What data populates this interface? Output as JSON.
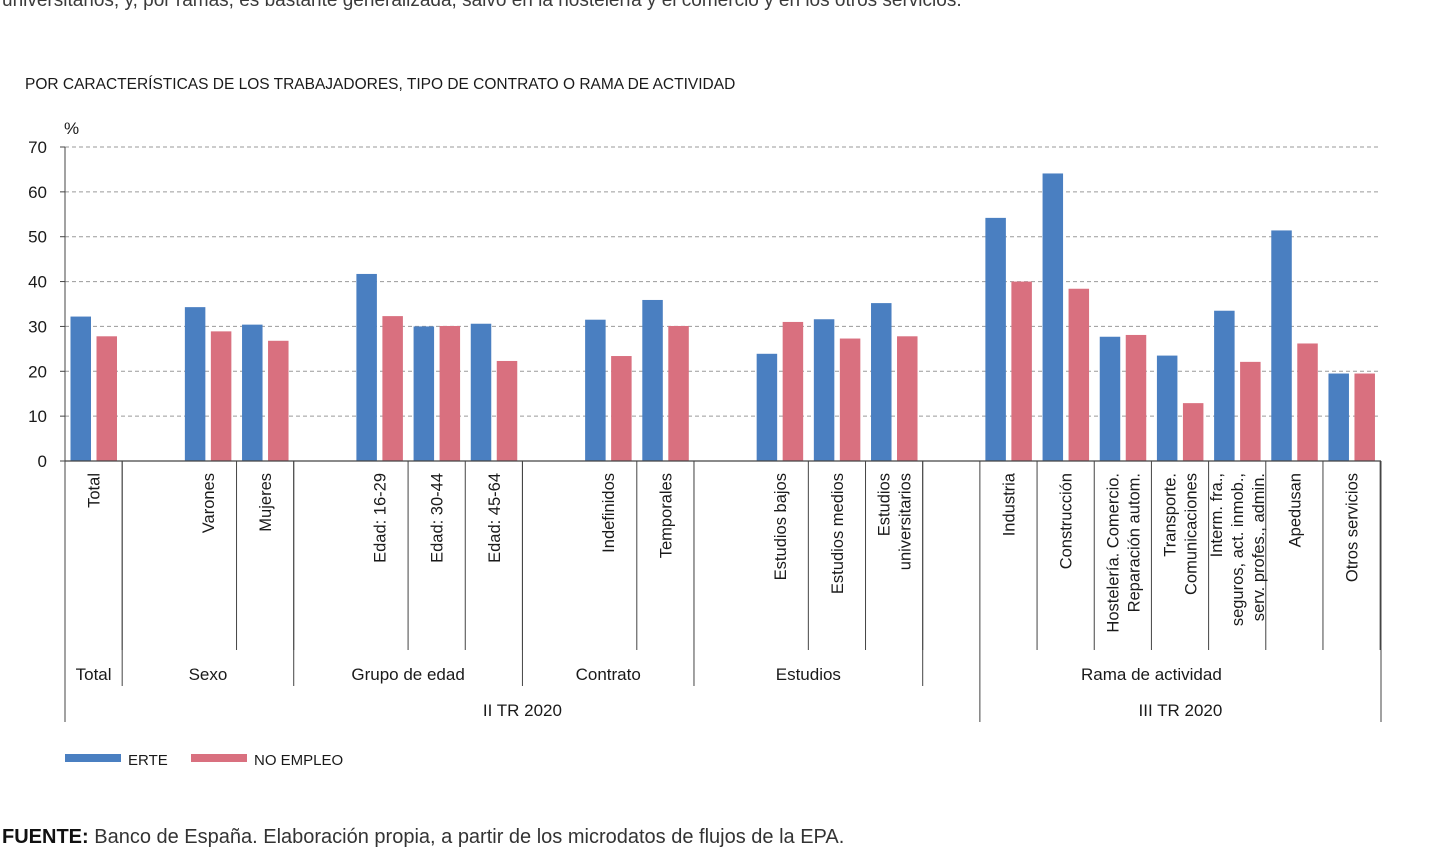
{
  "intro_text": "universitarios; y, por ramas, es bastante generalizada, salvo en la hostelería y el comercio y en los otros servicios.",
  "chart_data": {
    "type": "bar",
    "title": "POR CARACTERÍSTICAS DE LOS TRABAJADORES, TIPO DE CONTRATO O RAMA DE ACTIVIDAD",
    "ylabel": "%",
    "ylim": [
      0,
      70
    ],
    "yticks": [
      0,
      10,
      20,
      30,
      40,
      50,
      60,
      70
    ],
    "grid": true,
    "colors": {
      "ERTE": "#4a7fc1",
      "NO EMPLEO": "#d9707f"
    },
    "series": [
      {
        "name": "ERTE",
        "values": [
          32.2,
          34.3,
          30.4,
          41.7,
          30.0,
          30.6,
          31.5,
          35.9,
          23.9,
          31.6,
          35.2,
          54.2,
          64.1,
          27.7,
          23.5,
          33.5,
          51.4,
          19.5
        ]
      },
      {
        "name": "NO EMPLEO",
        "values": [
          27.8,
          28.9,
          26.8,
          32.3,
          30.1,
          22.3,
          23.4,
          30.1,
          31.0,
          27.3,
          27.8,
          40.0,
          38.4,
          28.1,
          12.9,
          22.1,
          26.2,
          19.5
        ]
      }
    ],
    "categories": [
      {
        "lines": [
          "Total"
        ],
        "group": 0
      },
      {
        "lines": [
          "Varones"
        ],
        "group": 1
      },
      {
        "lines": [
          "Mujeres"
        ],
        "group": 1
      },
      {
        "lines": [
          "Edad: 16-29"
        ],
        "group": 2
      },
      {
        "lines": [
          "Edad: 30-44"
        ],
        "group": 2
      },
      {
        "lines": [
          "Edad: 45-64"
        ],
        "group": 2
      },
      {
        "lines": [
          "Indefinidos"
        ],
        "group": 3
      },
      {
        "lines": [
          "Temporales"
        ],
        "group": 3
      },
      {
        "lines": [
          "Estudios bajos"
        ],
        "group": 4
      },
      {
        "lines": [
          "Estudios medios"
        ],
        "group": 4
      },
      {
        "lines": [
          "Estudios",
          "universitarios"
        ],
        "group": 4
      },
      {
        "lines": [
          "Industria"
        ],
        "group": 5
      },
      {
        "lines": [
          "Construcción"
        ],
        "group": 5
      },
      {
        "lines": [
          "Hostelería. Comercio.",
          "Reparación autom."
        ],
        "group": 5
      },
      {
        "lines": [
          "Transporte.",
          "Comunicaciones"
        ],
        "group": 5
      },
      {
        "lines": [
          "Interm. fra.,",
          "seguros, act. inmob.,",
          "serv. profes., admin."
        ],
        "group": 5
      },
      {
        "lines": [
          "Apedusan"
        ],
        "group": 5
      },
      {
        "lines": [
          "Otros servicios"
        ],
        "group": 5
      }
    ],
    "groups": [
      "Total",
      "Sexo",
      "Grupo de edad",
      "Contrato",
      "Estudios",
      "Rama de actividad"
    ],
    "periods": [
      "II TR 2020",
      "III TR 2020"
    ],
    "legend": [
      "ERTE",
      "NO EMPLEO"
    ]
  },
  "source": {
    "label": "FUENTE:",
    "text": " Banco de España. Elaboración propia, a partir de los microdatos de flujos de la EPA."
  }
}
